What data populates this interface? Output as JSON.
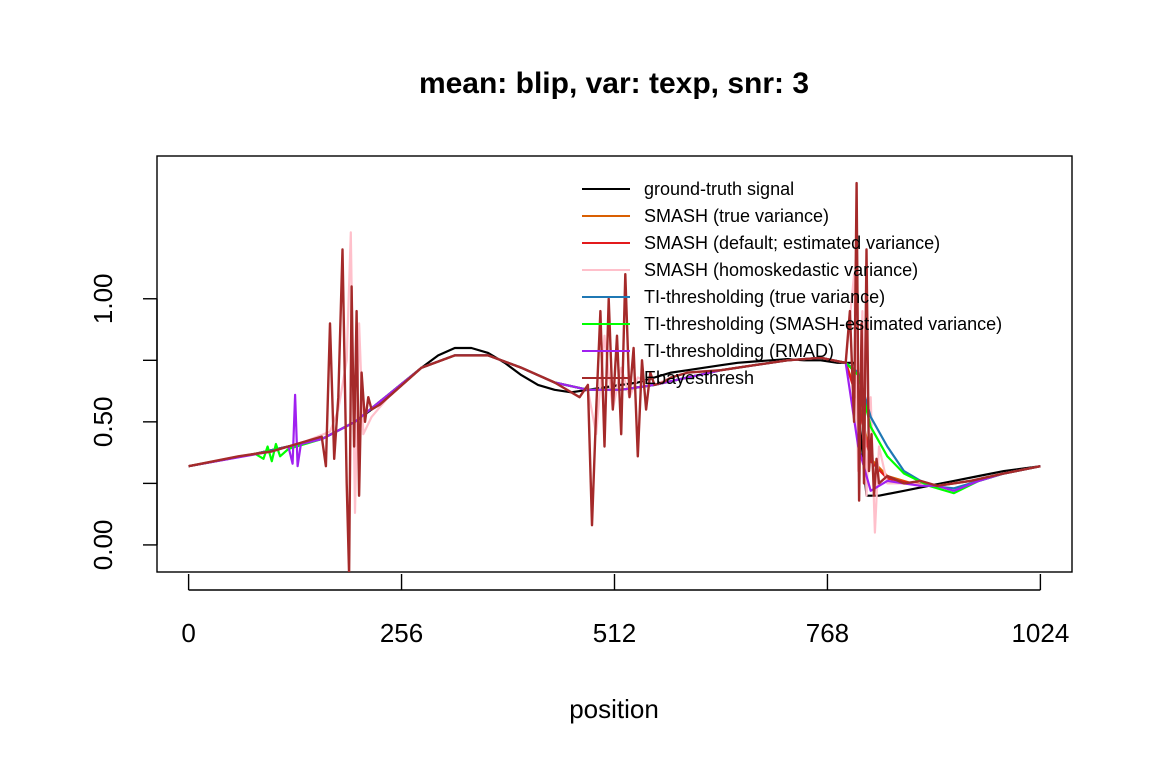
{
  "chart_data": {
    "type": "line",
    "title": "mean: blip, var: texp, snr: 3",
    "xlabel": "position",
    "ylabel": "",
    "xlim": [
      -38,
      1062
    ],
    "ylim": [
      -0.11,
      1.58
    ],
    "xticks": [
      0,
      256,
      512,
      768,
      1024
    ],
    "yticks": [
      0.0,
      0.5,
      1.0
    ],
    "ytick_labels": [
      "0.00",
      "0.50",
      "1.00"
    ],
    "grid": false,
    "legend_position": "top-right",
    "series": [
      {
        "name": "ground-truth signal",
        "color": "#000000",
        "x": [
          0,
          40,
          80,
          120,
          160,
          200,
          240,
          280,
          300,
          320,
          340,
          360,
          380,
          400,
          420,
          440,
          460,
          480,
          500,
          520,
          540,
          560,
          580,
          600,
          620,
          640,
          660,
          680,
          700,
          720,
          740,
          760,
          780,
          800,
          815,
          830,
          860,
          890,
          920,
          950,
          980,
          1024
        ],
        "y": [
          0.32,
          0.345,
          0.37,
          0.4,
          0.43,
          0.5,
          0.6,
          0.72,
          0.77,
          0.8,
          0.8,
          0.78,
          0.74,
          0.69,
          0.65,
          0.63,
          0.62,
          0.63,
          0.64,
          0.65,
          0.66,
          0.68,
          0.7,
          0.71,
          0.72,
          0.73,
          0.74,
          0.745,
          0.75,
          0.755,
          0.75,
          0.75,
          0.74,
          0.74,
          0.2,
          0.2,
          0.22,
          0.24,
          0.26,
          0.28,
          0.3,
          0.32
        ]
      },
      {
        "name": "SMASH (true variance)",
        "color": "#d95f02",
        "x": [
          0,
          80,
          160,
          200,
          240,
          280,
          320,
          360,
          400,
          440,
          480,
          520,
          560,
          600,
          640,
          680,
          720,
          760,
          790,
          805,
          820,
          840,
          870,
          900,
          940,
          980,
          1024
        ],
        "y": [
          0.32,
          0.37,
          0.43,
          0.5,
          0.61,
          0.72,
          0.77,
          0.77,
          0.72,
          0.66,
          0.63,
          0.63,
          0.65,
          0.68,
          0.71,
          0.73,
          0.75,
          0.76,
          0.74,
          0.6,
          0.35,
          0.28,
          0.25,
          0.24,
          0.26,
          0.29,
          0.32
        ]
      },
      {
        "name": "SMASH (default; estimated variance)",
        "color": "#e31a1c",
        "x": [
          0,
          80,
          160,
          200,
          240,
          280,
          320,
          360,
          400,
          440,
          480,
          520,
          560,
          600,
          640,
          680,
          720,
          760,
          790,
          805,
          820,
          840,
          870,
          900,
          940,
          980,
          1024
        ],
        "y": [
          0.32,
          0.37,
          0.43,
          0.5,
          0.61,
          0.72,
          0.77,
          0.77,
          0.72,
          0.66,
          0.63,
          0.63,
          0.65,
          0.68,
          0.71,
          0.73,
          0.75,
          0.76,
          0.74,
          0.58,
          0.34,
          0.27,
          0.25,
          0.24,
          0.26,
          0.29,
          0.32
        ]
      },
      {
        "name": "SMASH (homoskedastic variance)",
        "color": "#ffc0cb",
        "x": [
          0,
          60,
          100,
          140,
          170,
          180,
          190,
          195,
          200,
          205,
          210,
          220,
          240,
          280,
          320,
          360,
          400,
          440,
          480,
          490,
          500,
          510,
          520,
          530,
          540,
          560,
          580,
          600,
          640,
          680,
          720,
          760,
          790,
          800,
          805,
          810,
          815,
          820,
          825,
          830,
          840,
          860,
          900,
          940,
          980,
          1024
        ],
        "y": [
          0.32,
          0.36,
          0.38,
          0.42,
          0.46,
          0.55,
          0.75,
          1.27,
          0.13,
          0.9,
          0.45,
          0.52,
          0.6,
          0.72,
          0.77,
          0.77,
          0.72,
          0.66,
          0.63,
          0.45,
          0.85,
          0.55,
          0.72,
          0.6,
          0.68,
          0.65,
          0.68,
          0.7,
          0.71,
          0.73,
          0.75,
          0.76,
          0.74,
          1.1,
          0.3,
          0.95,
          0.2,
          0.6,
          0.05,
          0.4,
          0.25,
          0.25,
          0.24,
          0.26,
          0.29,
          0.32
        ]
      },
      {
        "name": "TI-thresholding (true variance)",
        "color": "#1f78b4",
        "x": [
          0,
          80,
          160,
          200,
          240,
          280,
          320,
          360,
          400,
          440,
          480,
          520,
          560,
          600,
          640,
          680,
          720,
          760,
          790,
          805,
          820,
          840,
          860,
          890,
          920,
          950,
          980,
          1024
        ],
        "y": [
          0.32,
          0.37,
          0.43,
          0.5,
          0.61,
          0.72,
          0.77,
          0.77,
          0.72,
          0.66,
          0.63,
          0.63,
          0.65,
          0.68,
          0.71,
          0.73,
          0.75,
          0.76,
          0.74,
          0.7,
          0.52,
          0.4,
          0.3,
          0.24,
          0.23,
          0.26,
          0.29,
          0.32
        ]
      },
      {
        "name": "TI-thresholding (SMASH-estimated variance)",
        "color": "#00ff00",
        "x": [
          0,
          80,
          90,
          95,
          100,
          105,
          110,
          120,
          160,
          200,
          240,
          280,
          320,
          360,
          400,
          440,
          480,
          520,
          560,
          600,
          640,
          680,
          720,
          760,
          790,
          805,
          820,
          840,
          860,
          890,
          920,
          950,
          980,
          1024
        ],
        "y": [
          0.32,
          0.37,
          0.35,
          0.4,
          0.34,
          0.41,
          0.36,
          0.39,
          0.43,
          0.5,
          0.61,
          0.72,
          0.77,
          0.77,
          0.72,
          0.66,
          0.63,
          0.63,
          0.65,
          0.68,
          0.71,
          0.73,
          0.75,
          0.76,
          0.74,
          0.69,
          0.48,
          0.36,
          0.29,
          0.24,
          0.21,
          0.26,
          0.29,
          0.32
        ]
      },
      {
        "name": "TI-thresholding (RMAD)",
        "color": "#a020f0",
        "x": [
          0,
          100,
          120,
          125,
          128,
          131,
          135,
          160,
          200,
          240,
          280,
          320,
          360,
          400,
          440,
          480,
          520,
          560,
          600,
          640,
          680,
          720,
          760,
          790,
          805,
          820,
          840,
          860,
          880,
          900,
          920,
          950,
          980,
          1024
        ],
        "y": [
          0.32,
          0.38,
          0.4,
          0.33,
          0.61,
          0.32,
          0.41,
          0.43,
          0.5,
          0.61,
          0.72,
          0.77,
          0.77,
          0.72,
          0.66,
          0.63,
          0.63,
          0.65,
          0.68,
          0.71,
          0.73,
          0.75,
          0.76,
          0.74,
          0.4,
          0.22,
          0.26,
          0.25,
          0.24,
          0.24,
          0.22,
          0.26,
          0.29,
          0.32
        ]
      },
      {
        "name": "Ebayesthresh",
        "color": "#a52a2a",
        "x": [
          0,
          60,
          100,
          140,
          160,
          165,
          170,
          175,
          180,
          185,
          190,
          193,
          196,
          199,
          202,
          205,
          208,
          212,
          216,
          220,
          230,
          240,
          280,
          320,
          360,
          400,
          440,
          470,
          480,
          485,
          490,
          495,
          500,
          505,
          510,
          515,
          520,
          525,
          530,
          535,
          540,
          545,
          550,
          555,
          560,
          570,
          580,
          600,
          640,
          680,
          720,
          760,
          790,
          795,
          800,
          803,
          806,
          809,
          812,
          815,
          818,
          821,
          824,
          827,
          830,
          840,
          860,
          880,
          900,
          940,
          980,
          1024
        ],
        "y": [
          0.32,
          0.36,
          0.38,
          0.42,
          0.44,
          0.32,
          0.9,
          0.35,
          0.6,
          1.2,
          0.25,
          -0.12,
          1.05,
          0.4,
          0.95,
          0.2,
          0.7,
          0.5,
          0.6,
          0.55,
          0.57,
          0.6,
          0.72,
          0.77,
          0.77,
          0.72,
          0.66,
          0.6,
          0.65,
          0.08,
          0.55,
          0.95,
          0.4,
          1.0,
          0.55,
          0.85,
          0.45,
          1.1,
          0.6,
          0.8,
          0.36,
          0.75,
          0.55,
          0.7,
          0.65,
          0.66,
          0.68,
          0.7,
          0.71,
          0.73,
          0.75,
          0.76,
          0.74,
          0.95,
          0.5,
          1.47,
          0.18,
          0.9,
          0.25,
          1.2,
          0.3,
          0.45,
          0.2,
          0.35,
          0.25,
          0.28,
          0.25,
          0.26,
          0.24,
          0.26,
          0.29,
          0.32
        ]
      }
    ]
  }
}
